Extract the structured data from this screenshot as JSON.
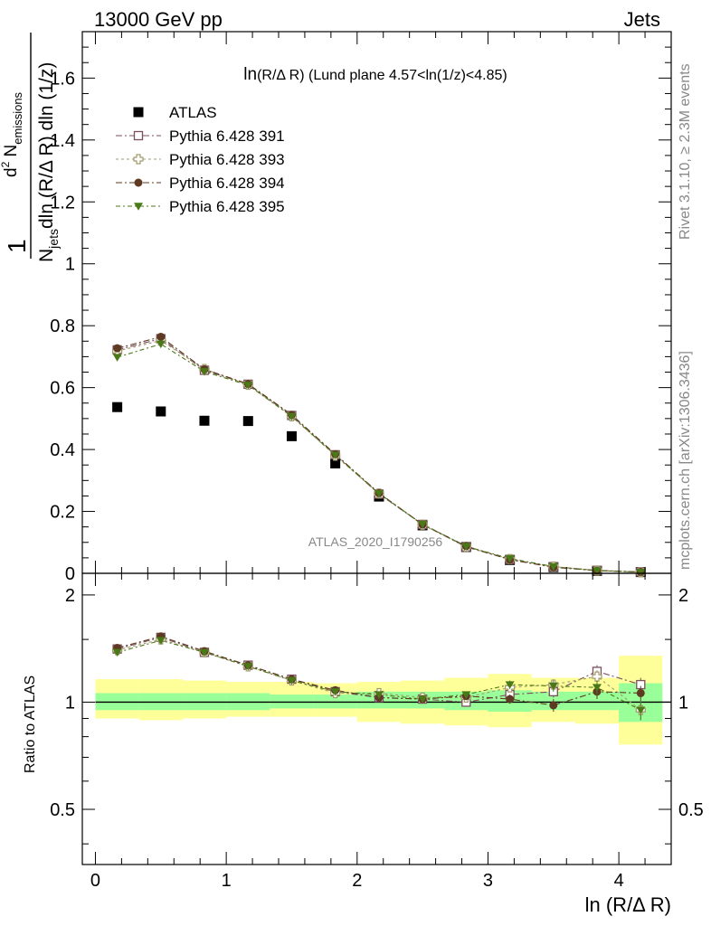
{
  "header": {
    "left": "13000 GeV pp",
    "right": "Jets"
  },
  "side": {
    "rivet": "Rivet 3.1.10, ≥ 2.3M events",
    "mcplots": "mcplots.cern.ch [arXiv:1306.3436]"
  },
  "watermark": "ATLAS_2020_I1790256",
  "colors": {
    "atlas": "#000000",
    "p391": "#7b4f5e",
    "p393": "#a29a6c",
    "p394": "#5e3a22",
    "p395": "#4a7a17",
    "band_inner": "#99ff99",
    "band_outer": "#ffff99"
  },
  "chart_data": [
    {
      "type": "scatter",
      "title": "ln(R/Δ R) (Lund plane 4.57<ln(1/z)<4.85)",
      "title_parts": {
        "main": "ln",
        "paren": "(R/Δ R)",
        "rest": " (Lund plane 4.57<ln(1/z)<4.85)"
      },
      "ylabel": "1/N_jets dln(R/Δ R) dln(1/z) d² N_emissions",
      "ylabel_parts": {
        "one": "1",
        "n": "N",
        "jets": "jets",
        "den_rest": "dln (R/Δ R) dln (1/z)",
        "d2": "d",
        "sq": "2",
        "nn": " N",
        "emissions": "emissions"
      },
      "xlim": [
        -0.1,
        4.4
      ],
      "ylim": [
        0,
        1.75
      ],
      "yticks": [
        0,
        0.2,
        0.4,
        0.6,
        0.8,
        1,
        1.2,
        1.4,
        1.6
      ],
      "ytick_labels": [
        "0",
        "0.2",
        "0.4",
        "0.6",
        "0.8",
        "1",
        "1.2",
        "1.4",
        "1.6"
      ],
      "x": [
        0.167,
        0.5,
        0.833,
        1.167,
        1.5,
        1.833,
        2.167,
        2.5,
        2.833,
        3.167,
        3.5,
        3.833,
        4.167
      ],
      "series": [
        {
          "name": "ATLAS",
          "marker": "square",
          "values": [
            0.537,
            0.523,
            0.493,
            0.492,
            0.443,
            0.355,
            0.248,
            0.155,
            0.085,
            0.043,
            0.02,
            0.008,
            0.004
          ]
        },
        {
          "name": "Pythia 6.428 391",
          "marker": "open-square",
          "values": [
            0.722,
            0.758,
            0.656,
            0.611,
            0.51,
            0.383,
            0.256,
            0.158,
            0.085,
            0.045,
            0.021,
            0.0095,
            0.0045
          ]
        },
        {
          "name": "Pythia 6.428 393",
          "marker": "open-cross",
          "values": [
            0.718,
            0.752,
            0.66,
            0.609,
            0.507,
            0.38,
            0.258,
            0.157,
            0.086,
            0.046,
            0.022,
            0.0093,
            0.0037
          ]
        },
        {
          "name": "Pythia 6.428 394",
          "marker": "circle",
          "values": [
            0.727,
            0.764,
            0.659,
            0.612,
            0.512,
            0.385,
            0.259,
            0.158,
            0.088,
            0.044,
            0.0195,
            0.0087,
            0.0043
          ]
        },
        {
          "name": "Pythia 6.428 395",
          "marker": "triangle-down",
          "values": [
            0.698,
            0.741,
            0.652,
            0.608,
            0.507,
            0.382,
            0.258,
            0.159,
            0.087,
            0.048,
            0.022,
            0.0088,
            0.0038
          ]
        }
      ]
    },
    {
      "type": "scatter",
      "xlabel": "ln (R/Δ R)",
      "ylabel": "Ratio to ATLAS",
      "xlim": [
        -0.1,
        4.4
      ],
      "ylim": [
        0.35,
        2.3
      ],
      "yscale": "log",
      "yticks": [
        0.5,
        1,
        2
      ],
      "ytick_labels": [
        "0.5",
        "1",
        "2"
      ],
      "xticks": [
        0,
        1,
        2,
        3,
        4
      ],
      "xtick_labels": [
        "0",
        "1",
        "2",
        "3",
        "4"
      ],
      "reference_line": 1,
      "x": [
        0.167,
        0.5,
        0.833,
        1.167,
        1.5,
        1.833,
        2.167,
        2.5,
        2.833,
        3.167,
        3.5,
        3.833,
        4.167
      ],
      "bin_edges": [
        0,
        0.333,
        0.667,
        1,
        1.333,
        1.667,
        2,
        2.333,
        2.667,
        3,
        3.333,
        3.667,
        4,
        4.333
      ],
      "band_inner": [
        [
          0.95,
          1.06
        ],
        [
          0.95,
          1.06
        ],
        [
          0.95,
          1.06
        ],
        [
          0.95,
          1.06
        ],
        [
          0.96,
          1.05
        ],
        [
          0.96,
          1.05
        ],
        [
          0.96,
          1.07
        ],
        [
          0.96,
          1.07
        ],
        [
          0.95,
          1.07
        ],
        [
          0.94,
          1.08
        ],
        [
          0.95,
          1.07
        ],
        [
          0.95,
          1.07
        ],
        [
          0.88,
          1.13
        ]
      ],
      "band_outer": [
        [
          0.9,
          1.16
        ],
        [
          0.89,
          1.16
        ],
        [
          0.9,
          1.15
        ],
        [
          0.91,
          1.14
        ],
        [
          0.91,
          1.14
        ],
        [
          0.91,
          1.13
        ],
        [
          0.88,
          1.14
        ],
        [
          0.87,
          1.15
        ],
        [
          0.86,
          1.17
        ],
        [
          0.85,
          1.2
        ],
        [
          0.88,
          1.17
        ],
        [
          0.87,
          1.17
        ],
        [
          0.76,
          1.35
        ]
      ],
      "series": [
        {
          "name": "Pythia 6.428 391",
          "marker": "open-square",
          "values": [
            1.41,
            1.52,
            1.38,
            1.27,
            1.16,
            1.07,
            1.03,
            1.02,
            1.0,
            1.05,
            1.07,
            1.22,
            1.12
          ],
          "errors": [
            0.02,
            0.02,
            0.02,
            0.02,
            0.02,
            0.02,
            0.02,
            0.02,
            0.02,
            0.03,
            0.04,
            0.05,
            0.05
          ]
        },
        {
          "name": "Pythia 6.428 393",
          "marker": "open-cross",
          "values": [
            1.4,
            1.5,
            1.38,
            1.26,
            1.15,
            1.06,
            1.06,
            1.03,
            1.03,
            1.1,
            1.12,
            1.18,
            0.95
          ],
          "errors": [
            0.02,
            0.02,
            0.02,
            0.02,
            0.02,
            0.02,
            0.02,
            0.02,
            0.03,
            0.03,
            0.04,
            0.05,
            0.06
          ]
        },
        {
          "name": "Pythia 6.428 394",
          "marker": "circle",
          "values": [
            1.42,
            1.53,
            1.39,
            1.27,
            1.16,
            1.08,
            1.03,
            1.02,
            1.04,
            1.02,
            0.98,
            1.07,
            1.06
          ],
          "errors": [
            0.02,
            0.02,
            0.02,
            0.02,
            0.02,
            0.02,
            0.02,
            0.02,
            0.02,
            0.03,
            0.04,
            0.05,
            0.05
          ]
        },
        {
          "name": "Pythia 6.428 395",
          "marker": "triangle-down",
          "values": [
            1.38,
            1.49,
            1.38,
            1.26,
            1.15,
            1.07,
            1.05,
            1.02,
            1.05,
            1.12,
            1.11,
            1.1,
            0.95
          ],
          "errors": [
            0.02,
            0.02,
            0.02,
            0.02,
            0.02,
            0.02,
            0.02,
            0.02,
            0.02,
            0.03,
            0.04,
            0.05,
            0.06
          ]
        }
      ]
    }
  ]
}
